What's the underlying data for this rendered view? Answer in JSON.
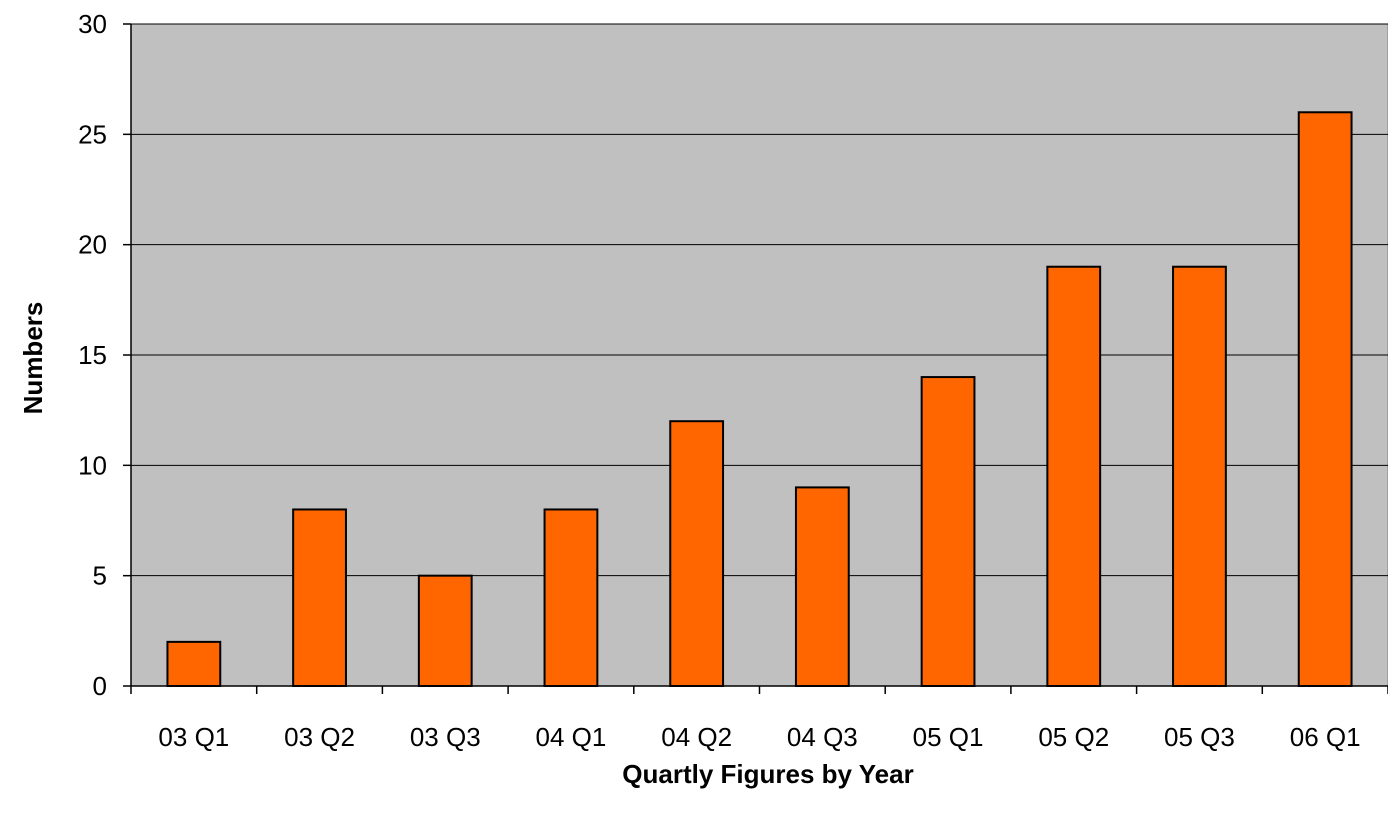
{
  "chart_data": {
    "type": "bar",
    "title": "",
    "xlabel": "Quartly Figures by Year",
    "ylabel": "Numbers",
    "categories": [
      "03 Q1",
      "03 Q2",
      "03 Q3",
      "04 Q1",
      "04 Q2",
      "04 Q3",
      "05 Q1",
      "05 Q2",
      "05 Q3",
      "06 Q1"
    ],
    "values": [
      2,
      8,
      5,
      8,
      12,
      9,
      14,
      19,
      19,
      26
    ],
    "ylim": [
      0,
      30
    ],
    "yticks": [
      "0",
      "5",
      "10",
      "15",
      "20",
      "25",
      "30"
    ],
    "grid": true,
    "legend": "none",
    "colors": {
      "bar": "#FF6600",
      "plot_background": "#C0C0C0",
      "gridline": "#000000"
    }
  }
}
